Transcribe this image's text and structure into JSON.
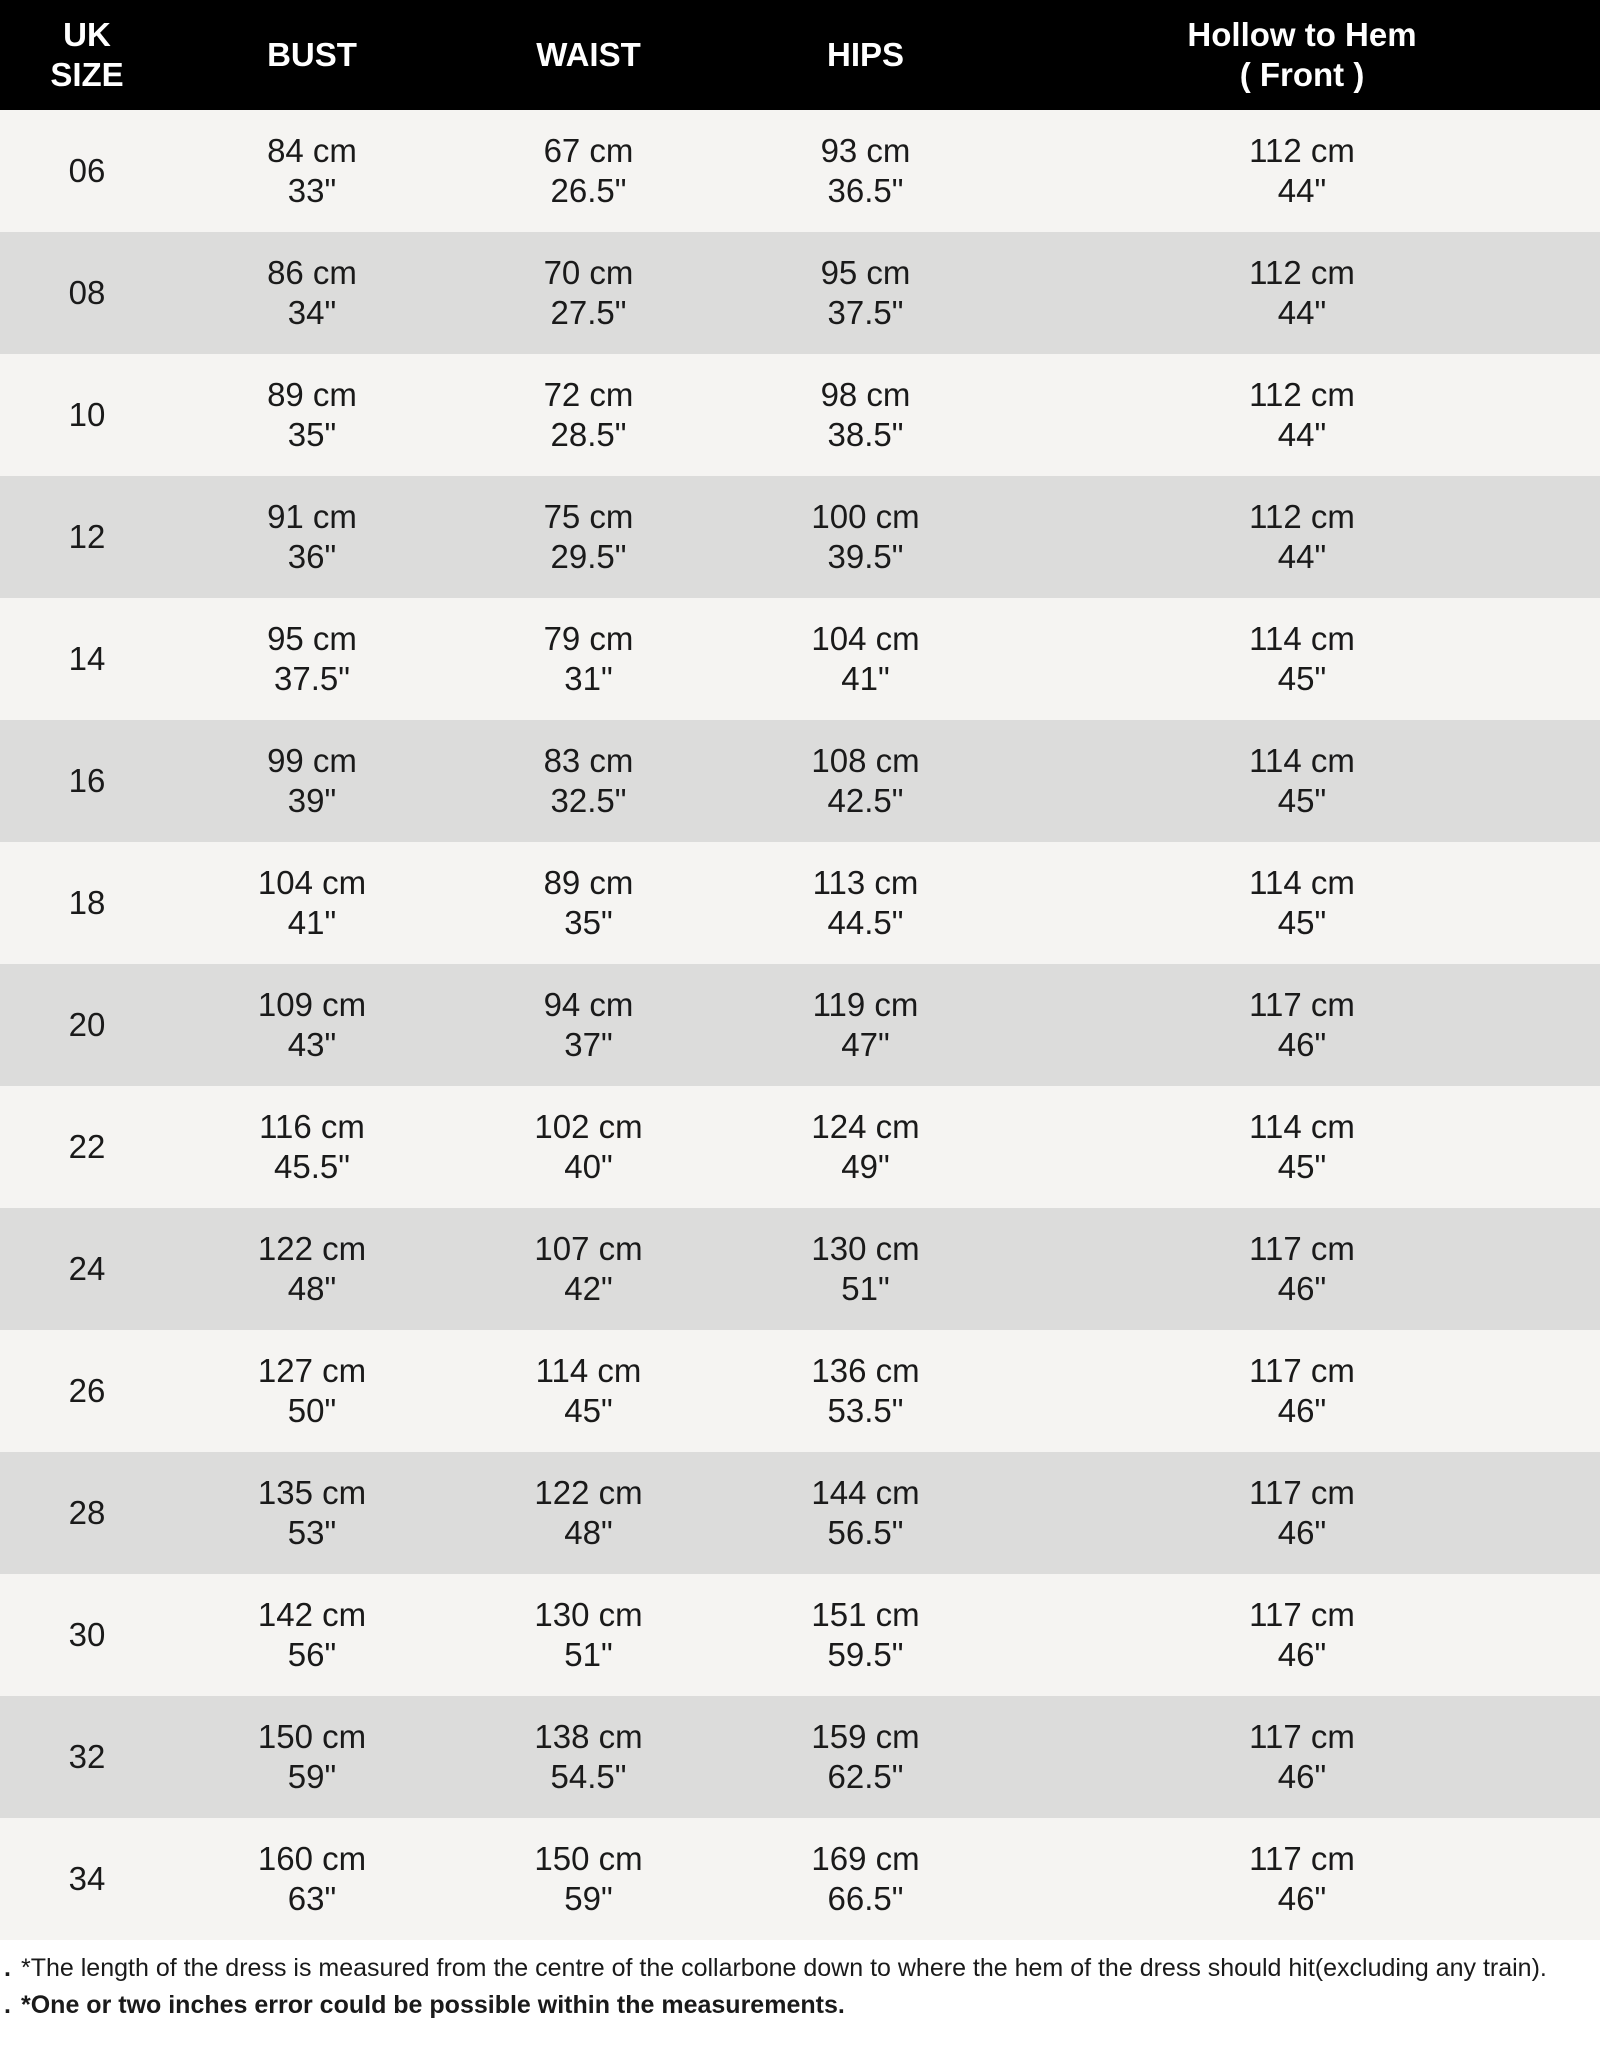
{
  "headers": {
    "size_line1": "UK",
    "size_line2": "SIZE",
    "bust": "BUST",
    "waist": "WAIST",
    "hips": "HIPS",
    "hem_line1": "Hollow to Hem",
    "hem_line2": "( Front )"
  },
  "colors": {
    "header_bg": "#000000",
    "row_light": "#f5f4f2",
    "row_dark": "#dcdcdb"
  },
  "rows": [
    {
      "size": "06",
      "bust_cm": "84 cm",
      "bust_in": "33\"",
      "waist_cm": "67 cm",
      "waist_in": "26.5\"",
      "hips_cm": "93 cm",
      "hips_in": "36.5\"",
      "hem_cm": "112 cm",
      "hem_in": "44\""
    },
    {
      "size": "08",
      "bust_cm": "86 cm",
      "bust_in": "34\"",
      "waist_cm": "70 cm",
      "waist_in": "27.5\"",
      "hips_cm": "95 cm",
      "hips_in": "37.5\"",
      "hem_cm": "112 cm",
      "hem_in": "44\""
    },
    {
      "size": "10",
      "bust_cm": "89 cm",
      "bust_in": "35\"",
      "waist_cm": "72 cm",
      "waist_in": "28.5\"",
      "hips_cm": "98 cm",
      "hips_in": "38.5\"",
      "hem_cm": "112 cm",
      "hem_in": "44\""
    },
    {
      "size": "12",
      "bust_cm": "91 cm",
      "bust_in": "36\"",
      "waist_cm": "75 cm",
      "waist_in": "29.5\"",
      "hips_cm": "100 cm",
      "hips_in": "39.5\"",
      "hem_cm": "112 cm",
      "hem_in": "44\""
    },
    {
      "size": "14",
      "bust_cm": "95 cm",
      "bust_in": "37.5\"",
      "waist_cm": "79 cm",
      "waist_in": "31\"",
      "hips_cm": "104 cm",
      "hips_in": "41\"",
      "hem_cm": "114 cm",
      "hem_in": "45\""
    },
    {
      "size": "16",
      "bust_cm": "99 cm",
      "bust_in": "39\"",
      "waist_cm": "83 cm",
      "waist_in": "32.5\"",
      "hips_cm": "108 cm",
      "hips_in": "42.5\"",
      "hem_cm": "114 cm",
      "hem_in": "45\""
    },
    {
      "size": "18",
      "bust_cm": "104 cm",
      "bust_in": "41\"",
      "waist_cm": "89 cm",
      "waist_in": "35\"",
      "hips_cm": "113 cm",
      "hips_in": "44.5\"",
      "hem_cm": "114 cm",
      "hem_in": "45\""
    },
    {
      "size": "20",
      "bust_cm": "109 cm",
      "bust_in": "43\"",
      "waist_cm": "94 cm",
      "waist_in": "37\"",
      "hips_cm": "119 cm",
      "hips_in": "47\"",
      "hem_cm": "117 cm",
      "hem_in": "46\""
    },
    {
      "size": "22",
      "bust_cm": "116 cm",
      "bust_in": "45.5\"",
      "waist_cm": "102 cm",
      "waist_in": "40\"",
      "hips_cm": "124 cm",
      "hips_in": "49\"",
      "hem_cm": "114 cm",
      "hem_in": "45\""
    },
    {
      "size": "24",
      "bust_cm": "122 cm",
      "bust_in": "48\"",
      "waist_cm": "107 cm",
      "waist_in": "42\"",
      "hips_cm": "130 cm",
      "hips_in": "51\"",
      "hem_cm": "117 cm",
      "hem_in": "46\""
    },
    {
      "size": "26",
      "bust_cm": "127 cm",
      "bust_in": "50\"",
      "waist_cm": "114 cm",
      "waist_in": "45\"",
      "hips_cm": "136 cm",
      "hips_in": "53.5\"",
      "hem_cm": "117 cm",
      "hem_in": "46\""
    },
    {
      "size": "28",
      "bust_cm": "135 cm",
      "bust_in": "53\"",
      "waist_cm": "122 cm",
      "waist_in": "48\"",
      "hips_cm": "144 cm",
      "hips_in": "56.5\"",
      "hem_cm": "117 cm",
      "hem_in": "46\""
    },
    {
      "size": "30",
      "bust_cm": "142 cm",
      "bust_in": "56\"",
      "waist_cm": "130 cm",
      "waist_in": "51\"",
      "hips_cm": "151 cm",
      "hips_in": "59.5\"",
      "hem_cm": "117 cm",
      "hem_in": "46\""
    },
    {
      "size": "32",
      "bust_cm": "150 cm",
      "bust_in": "59\"",
      "waist_cm": "138 cm",
      "waist_in": "54.5\"",
      "hips_cm": "159 cm",
      "hips_in": "62.5\"",
      "hem_cm": "117 cm",
      "hem_in": "46\""
    },
    {
      "size": "34",
      "bust_cm": "160 cm",
      "bust_in": "63\"",
      "waist_cm": "150 cm",
      "waist_in": "59\"",
      "hips_cm": "169 cm",
      "hips_in": "66.5\"",
      "hem_cm": "117 cm",
      "hem_in": "46\""
    }
  ],
  "notes": {
    "bullet": ".",
    "length_note": "*The length of the dress is measured from the centre of the collarbone down to where the hem of the dress should hit(excluding any train).",
    "error_note": "*One or two inches error could be possible within the measurements."
  }
}
